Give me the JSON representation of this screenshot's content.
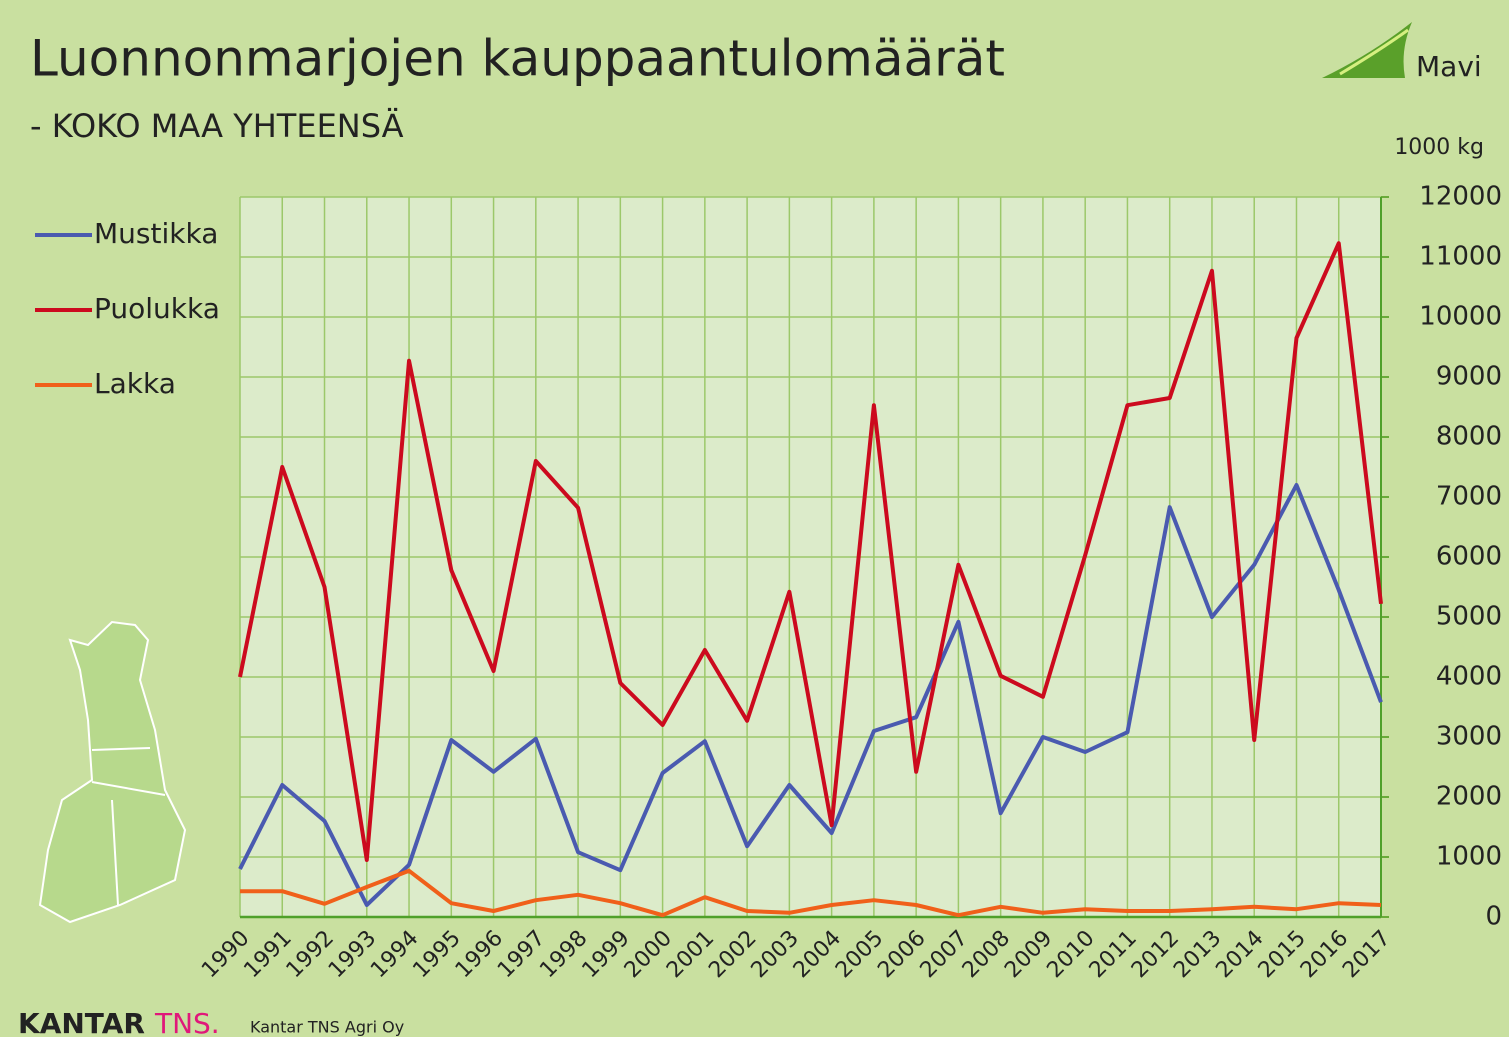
{
  "chart_data": {
    "type": "line",
    "title": "Luonnonmarjojen kauppaantulomäärät",
    "subtitle": "- KOKO MAA YHTEENSÄ",
    "y_axis_label": "1000 kg",
    "logo": "Mavi",
    "source_brand": "KANTAR",
    "source_brand_accent": "TNS.",
    "source": "Kantar TNS Agri Oy",
    "categories": [
      "1990",
      "1991",
      "1992",
      "1993",
      "1994",
      "1995",
      "1996",
      "1997",
      "1998",
      "1999",
      "2000",
      "2001",
      "2002",
      "2003",
      "2004",
      "2005",
      "2006",
      "2007",
      "2008",
      "2009",
      "2010",
      "2011",
      "2012",
      "2013",
      "2014",
      "2015",
      "2016",
      "2017"
    ],
    "series": [
      {
        "name": "Mustikka",
        "color": "#4a5ab0",
        "values": [
          800,
          2200,
          1600,
          200,
          870,
          2950,
          2420,
          2970,
          1080,
          780,
          2400,
          2930,
          1180,
          2200,
          1400,
          3100,
          3330,
          4920,
          1730,
          3000,
          2750,
          3080,
          6830,
          5000,
          5870,
          7200,
          5450,
          3580
        ]
      },
      {
        "name": "Puolukka",
        "color": "#cc0a1e",
        "values": [
          4000,
          7500,
          5500,
          950,
          9270,
          5780,
          4100,
          7600,
          6820,
          3900,
          3200,
          4450,
          3270,
          5420,
          1530,
          8530,
          2420,
          5870,
          4020,
          3670,
          6030,
          8530,
          8650,
          10770,
          2950,
          9650,
          11230,
          5220
        ]
      },
      {
        "name": "Lakka",
        "color": "#f0601a",
        "values": [
          430,
          430,
          220,
          500,
          770,
          230,
          100,
          280,
          370,
          230,
          30,
          330,
          100,
          70,
          200,
          280,
          200,
          30,
          170,
          70,
          130,
          100,
          100,
          130,
          170,
          130,
          230,
          200
        ]
      }
    ],
    "ylim": [
      0,
      12000
    ],
    "yticks": [
      0,
      1000,
      2000,
      3000,
      4000,
      5000,
      6000,
      7000,
      8000,
      9000,
      10000,
      11000,
      12000
    ],
    "grid": true,
    "legend": "left"
  }
}
